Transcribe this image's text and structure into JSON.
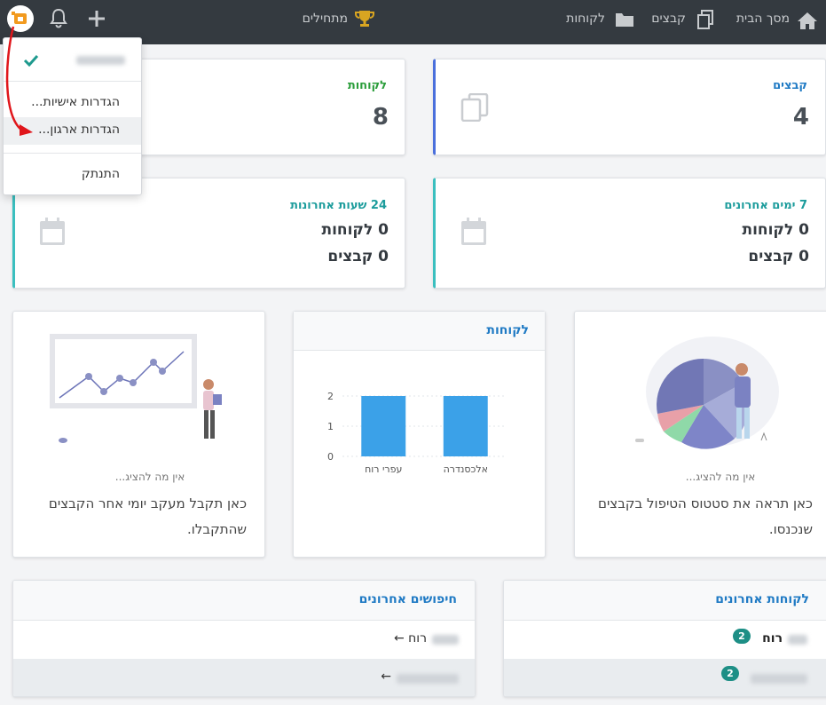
{
  "nav": {
    "home": "מסך הבית",
    "files": "קבצים",
    "customers": "לקוחות",
    "starters": "מתחילים"
  },
  "menu": {
    "items": [
      "הגדרות אישיות...",
      "הגדרות ארגון...",
      "התנתק"
    ]
  },
  "stats": [
    {
      "label": "קבצים",
      "value": "4"
    },
    {
      "label": "לקוחות",
      "value": "8"
    }
  ],
  "periods": [
    {
      "label": "7 ימים אחרונים",
      "lines": [
        "0 לקוחות",
        "0 קבצים"
      ]
    },
    {
      "label": "24 שעות אחרונות",
      "lines": [
        "0 לקוחות",
        "0 קבצים"
      ]
    }
  ],
  "status_card": {
    "empty": "אין מה להציג...",
    "text": "כאן תראה את סטטוס הטיפול בקבצים שנכנסו."
  },
  "chart_data": {
    "type": "bar",
    "title": "לקוחות",
    "categories": [
      "אלכסנדרה",
      "עפרי רוח"
    ],
    "values": [
      2,
      2
    ],
    "color": "#3ba1e8",
    "ylim": [
      0,
      2
    ],
    "yticks": [
      0,
      1,
      2
    ],
    "grid": true
  },
  "daily_card": {
    "empty": "אין מה להציג...",
    "text": "כאן תקבל מעקב יומי אחר הקבצים שהתקבלו."
  },
  "recent_customers": {
    "title": "לקוחות אחרונים",
    "rows": [
      {
        "name": "רוח",
        "count": "2"
      },
      {
        "count": "2"
      }
    ]
  },
  "recent_searches": {
    "title": "חיפושים אחרונים",
    "rows": [
      "רוח ←",
      "←"
    ]
  }
}
